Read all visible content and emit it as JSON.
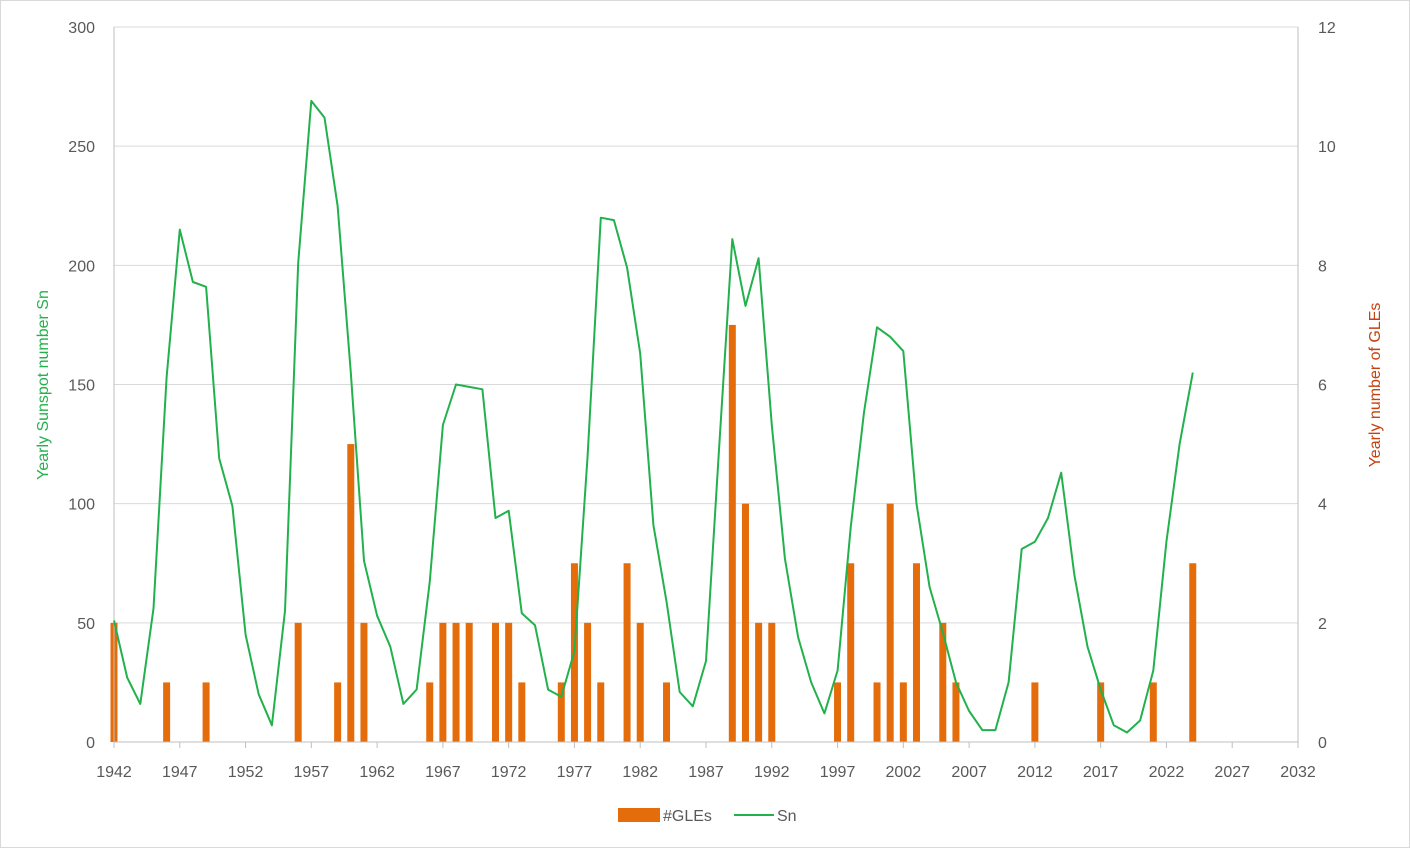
{
  "chart_data": {
    "type": "bar+line",
    "ylabel_left": "Yearly Sunspot number Sn",
    "ylabel_right": "Yearly number of GLEs",
    "xlim": [
      1942,
      2032
    ],
    "ylim_left": [
      0,
      300
    ],
    "ylim_right": [
      0,
      12
    ],
    "x_ticks": [
      "1942",
      "1947",
      "1952",
      "1957",
      "1962",
      "1967",
      "1972",
      "1977",
      "1982",
      "1987",
      "1992",
      "1997",
      "2002",
      "2007",
      "2012",
      "2017",
      "2022",
      "2027",
      "2032"
    ],
    "y_left_ticks": [
      "0",
      "50",
      "100",
      "150",
      "200",
      "250",
      "300"
    ],
    "y_right_ticks": [
      "0",
      "2",
      "4",
      "6",
      "8",
      "10",
      "12"
    ],
    "grid": "horizontal",
    "legend_position": "bottom",
    "colors": {
      "gles": "#e46c0a",
      "sn": "#22b14c",
      "left_title": "#22b14c",
      "right_title": "#c5410f"
    },
    "series": [
      {
        "name": "#GLEs",
        "type": "bar",
        "axis": "right",
        "x": [
          1942,
          1946,
          1949,
          1956,
          1959,
          1960,
          1961,
          1966,
          1967,
          1968,
          1969,
          1971,
          1972,
          1973,
          1976,
          1977,
          1978,
          1979,
          1981,
          1982,
          1984,
          1989,
          1990,
          1991,
          1992,
          1997,
          1998,
          2000,
          2001,
          2002,
          2003,
          2005,
          2006,
          2012,
          2017,
          2021,
          2024
        ],
        "values": [
          2,
          1,
          1,
          2,
          1,
          5,
          2,
          1,
          2,
          2,
          2,
          2,
          2,
          1,
          1,
          3,
          2,
          1,
          3,
          2,
          1,
          7,
          4,
          2,
          2,
          1,
          3,
          1,
          4,
          1,
          3,
          2,
          1,
          1,
          1,
          1,
          3
        ]
      },
      {
        "name": "Sn",
        "type": "line",
        "axis": "left",
        "x": [
          1942,
          1943,
          1944,
          1945,
          1946,
          1947,
          1948,
          1949,
          1950,
          1951,
          1952,
          1953,
          1954,
          1955,
          1956,
          1957,
          1958,
          1959,
          1960,
          1961,
          1962,
          1963,
          1964,
          1965,
          1966,
          1967,
          1968,
          1969,
          1970,
          1971,
          1972,
          1973,
          1974,
          1975,
          1976,
          1977,
          1978,
          1979,
          1980,
          1981,
          1982,
          1983,
          1984,
          1985,
          1986,
          1987,
          1988,
          1989,
          1990,
          1991,
          1992,
          1993,
          1994,
          1995,
          1996,
          1997,
          1998,
          1999,
          2000,
          2001,
          2002,
          2003,
          2004,
          2005,
          2006,
          2007,
          2008,
          2009,
          2010,
          2011,
          2012,
          2013,
          2014,
          2015,
          2016,
          2017,
          2018,
          2019,
          2020,
          2021,
          2022,
          2023,
          2024
        ],
        "values": [
          51,
          27,
          16,
          56,
          153,
          215,
          193,
          191,
          119,
          99,
          45,
          20,
          7,
          55,
          201,
          269,
          262,
          225,
          155,
          76,
          53,
          40,
          16,
          22,
          67,
          133,
          150,
          149,
          148,
          94,
          97,
          54,
          49,
          22,
          19,
          38,
          120,
          220,
          219,
          199,
          163,
          91,
          59,
          21,
          15,
          34,
          124,
          211,
          183,
          203,
          133,
          77,
          44,
          25,
          12,
          30,
          90,
          138,
          174,
          170,
          164,
          100,
          65,
          46,
          25,
          13,
          5,
          5,
          25,
          81,
          84,
          94,
          113,
          70,
          40,
          22,
          7,
          4,
          9,
          30,
          84,
          125,
          155
        ]
      }
    ]
  }
}
